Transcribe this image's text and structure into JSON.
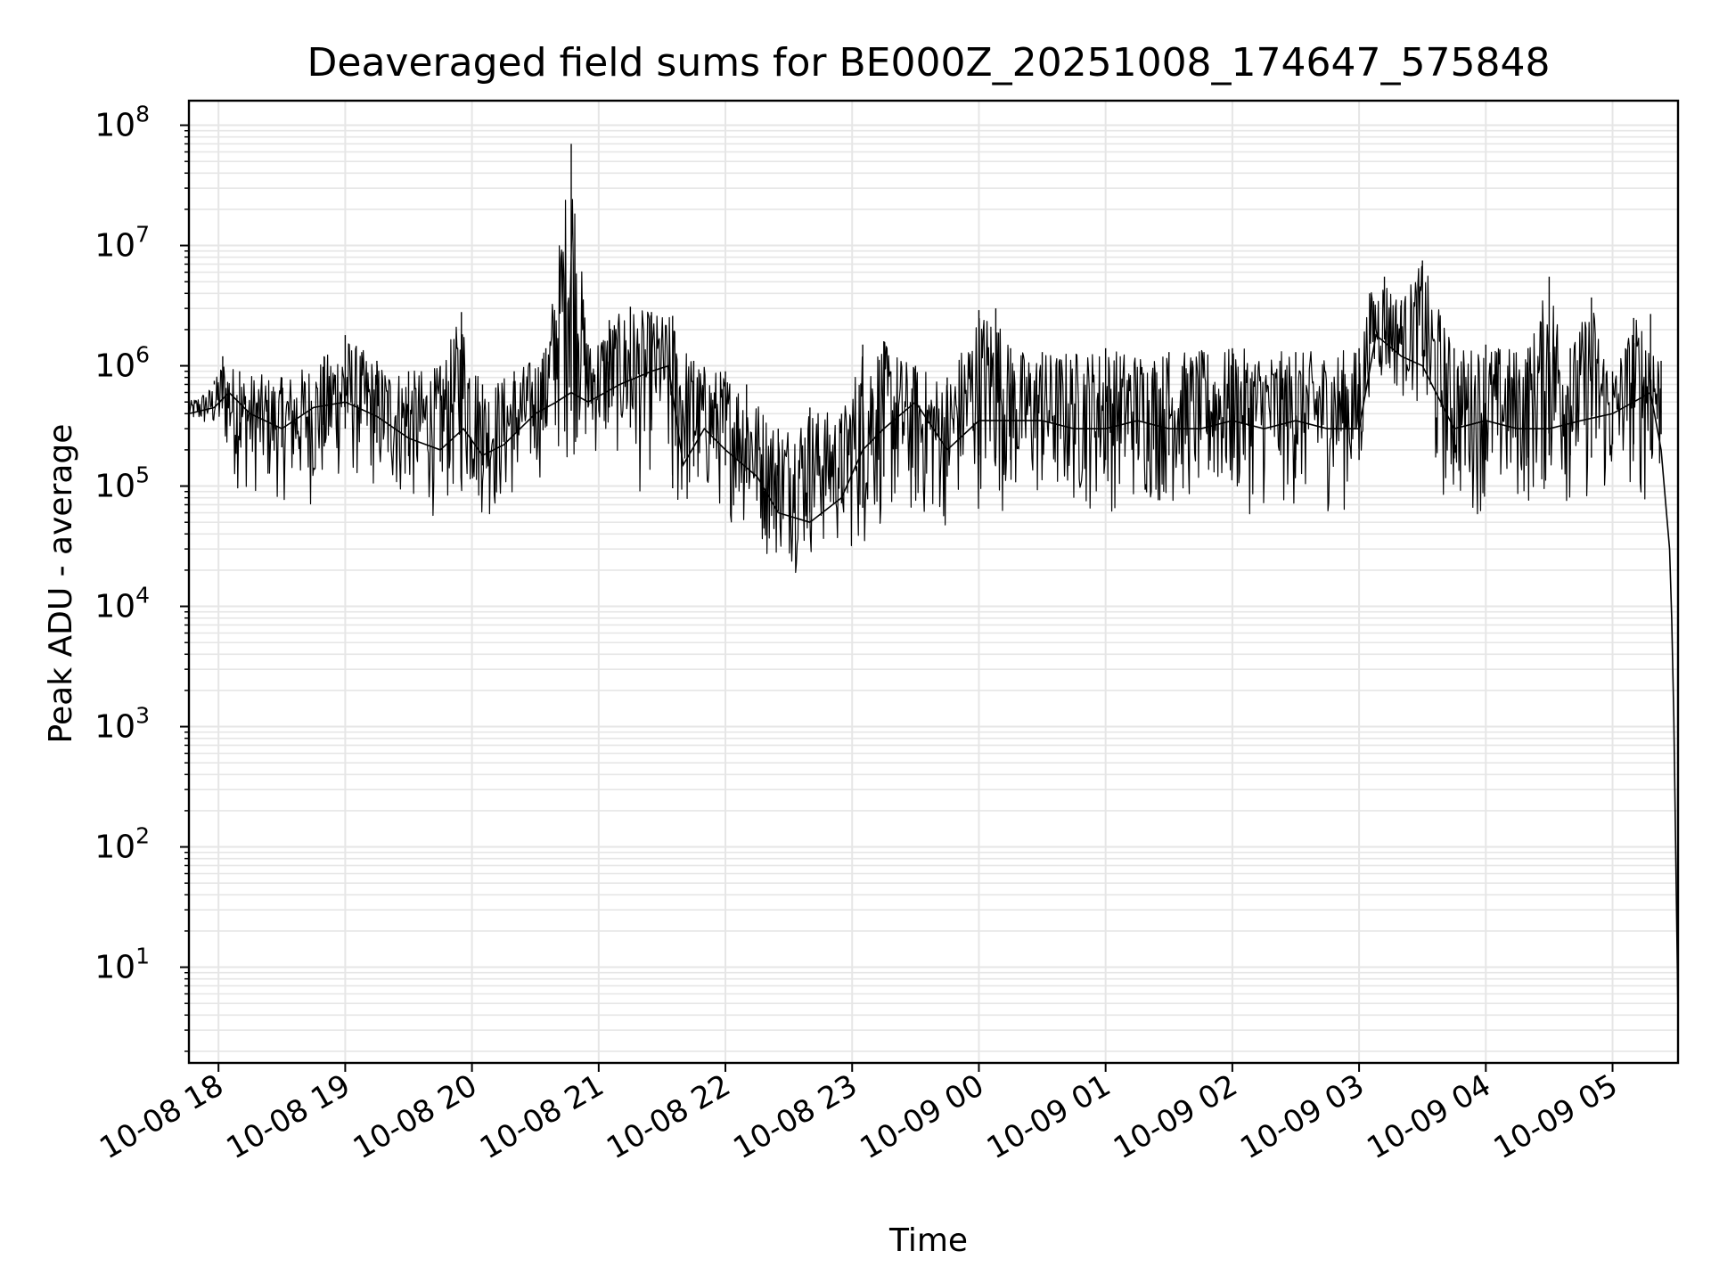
{
  "chart_data": {
    "type": "line",
    "title": "Deaveraged field sums for BE000Z_20251008_174647_575848",
    "xlabel": "Time",
    "ylabel": "Peak ADU - average",
    "y_scale": "log",
    "ylim": [
      1.6,
      160000000
    ],
    "xlim": [
      "2025-10-08 17:46",
      "2025-10-09 05:31"
    ],
    "grid": true,
    "line_color": "#000000",
    "grid_color": "#e6e6e6",
    "x_ticks": [
      {
        "t": "2025-10-08 18:00",
        "label": "10-08 18"
      },
      {
        "t": "2025-10-08 19:00",
        "label": "10-08 19"
      },
      {
        "t": "2025-10-08 20:00",
        "label": "10-08 20"
      },
      {
        "t": "2025-10-08 21:00",
        "label": "10-08 21"
      },
      {
        "t": "2025-10-08 22:00",
        "label": "10-08 22"
      },
      {
        "t": "2025-10-08 23:00",
        "label": "10-08 23"
      },
      {
        "t": "2025-10-09 00:00",
        "label": "10-09 00"
      },
      {
        "t": "2025-10-09 01:00",
        "label": "10-09 01"
      },
      {
        "t": "2025-10-09 02:00",
        "label": "10-09 02"
      },
      {
        "t": "2025-10-09 03:00",
        "label": "10-09 03"
      },
      {
        "t": "2025-10-09 04:00",
        "label": "10-09 04"
      },
      {
        "t": "2025-10-09 05:00",
        "label": "10-09 05"
      }
    ],
    "y_ticks": [
      {
        "value": 10,
        "base": "10",
        "exp": "1"
      },
      {
        "value": 100,
        "base": "10",
        "exp": "2"
      },
      {
        "value": 1000,
        "base": "10",
        "exp": "3"
      },
      {
        "value": 10000,
        "base": "10",
        "exp": "4"
      },
      {
        "value": 100000,
        "base": "10",
        "exp": "5"
      },
      {
        "value": 1000000,
        "base": "10",
        "exp": "6"
      },
      {
        "value": 10000000,
        "base": "10",
        "exp": "7"
      },
      {
        "value": 100000000,
        "base": "10",
        "exp": "8"
      }
    ],
    "series": [
      {
        "x": [
          "2025-10-08 17:46",
          "2025-10-08 17:58",
          "2025-10-08 18:05",
          "2025-10-08 18:15",
          "2025-10-08 18:30",
          "2025-10-08 18:45",
          "2025-10-08 19:00",
          "2025-10-08 19:15",
          "2025-10-08 19:30",
          "2025-10-08 19:45",
          "2025-10-08 19:56",
          "2025-10-08 20:05",
          "2025-10-08 20:15",
          "2025-10-08 20:30",
          "2025-10-08 20:40",
          "2025-10-08 20:47",
          "2025-10-08 20:55",
          "2025-10-08 21:10",
          "2025-10-08 21:25",
          "2025-10-08 21:33",
          "2025-10-08 21:40",
          "2025-10-08 21:50",
          "2025-10-08 22:00",
          "2025-10-08 22:15",
          "2025-10-08 22:25",
          "2025-10-08 22:40",
          "2025-10-08 22:55",
          "2025-10-08 23:05",
          "2025-10-08 23:15",
          "2025-10-08 23:30",
          "2025-10-08 23:45",
          "2025-10-09 00:00",
          "2025-10-09 00:15",
          "2025-10-09 00:30",
          "2025-10-09 00:45",
          "2025-10-09 01:00",
          "2025-10-09 01:15",
          "2025-10-09 01:30",
          "2025-10-09 01:45",
          "2025-10-09 02:00",
          "2025-10-09 02:15",
          "2025-10-09 02:30",
          "2025-10-09 02:45",
          "2025-10-09 03:00",
          "2025-10-09 03:08",
          "2025-10-09 03:20",
          "2025-10-09 03:30",
          "2025-10-09 03:45",
          "2025-10-09 04:00",
          "2025-10-09 04:15",
          "2025-10-09 04:30",
          "2025-10-09 04:45",
          "2025-10-09 05:00",
          "2025-10-09 05:10",
          "2025-10-09 05:18",
          "2025-10-09 05:23",
          "2025-10-09 05:27",
          "2025-10-09 05:28",
          "2025-10-09 05:29",
          "2025-10-09 05:31"
        ],
        "y": [
          400000,
          450000,
          600000,
          400000,
          300000,
          450000,
          500000,
          380000,
          250000,
          200000,
          300000,
          180000,
          220000,
          400000,
          500000,
          600000,
          500000,
          700000,
          900000,
          1000000,
          150000,
          300000,
          200000,
          120000,
          60000,
          50000,
          80000,
          200000,
          300000,
          500000,
          200000,
          350000,
          350000,
          350000,
          300000,
          300000,
          350000,
          300000,
          300000,
          350000,
          300000,
          350000,
          300000,
          300000,
          1800000,
          1200000,
          1000000,
          300000,
          350000,
          300000,
          300000,
          350000,
          400000,
          500000,
          600000,
          200000,
          30000,
          8000,
          1200,
          4
        ]
      }
    ],
    "upper_envelope": [
      [
        "2025-10-08 17:46",
        500000
      ],
      [
        "2025-10-08 17:58",
        700000
      ],
      [
        "2025-10-08 18:02",
        1200000
      ],
      [
        "2025-10-08 18:10",
        900000
      ],
      [
        "2025-10-08 18:30",
        800000
      ],
      [
        "2025-10-08 18:50",
        1200000
      ],
      [
        "2025-10-08 19:00",
        1800000
      ],
      [
        "2025-10-08 19:15",
        1100000
      ],
      [
        "2025-10-08 19:30",
        900000
      ],
      [
        "2025-10-08 19:45",
        1000000
      ],
      [
        "2025-10-08 19:55",
        2800000
      ],
      [
        "2025-10-08 20:05",
        700000
      ],
      [
        "2025-10-08 20:20",
        900000
      ],
      [
        "2025-10-08 20:35",
        1400000
      ],
      [
        "2025-10-08 20:47",
        70000000
      ],
      [
        "2025-10-08 20:55",
        1500000
      ],
      [
        "2025-10-08 21:05",
        2400000
      ],
      [
        "2025-10-08 21:15",
        3100000
      ],
      [
        "2025-10-08 21:25",
        2800000
      ],
      [
        "2025-10-08 21:35",
        2600000
      ],
      [
        "2025-10-08 21:45",
        1100000
      ],
      [
        "2025-10-08 22:00",
        900000
      ],
      [
        "2025-10-08 22:10",
        700000
      ],
      [
        "2025-10-08 22:25",
        300000
      ],
      [
        "2025-10-08 22:40",
        450000
      ],
      [
        "2025-10-08 22:55",
        400000
      ],
      [
        "2025-10-08 23:05",
        1500000
      ],
      [
        "2025-10-08 23:15",
        1600000
      ],
      [
        "2025-10-08 23:30",
        1000000
      ],
      [
        "2025-10-08 23:45",
        800000
      ],
      [
        "2025-10-09 00:00",
        2900000
      ],
      [
        "2025-10-09 00:08",
        3000000
      ],
      [
        "2025-10-09 00:15",
        1400000
      ],
      [
        "2025-10-09 00:30",
        1300000
      ],
      [
        "2025-10-09 01:00",
        1400000
      ],
      [
        "2025-10-09 01:30",
        1300000
      ],
      [
        "2025-10-09 02:00",
        1400000
      ],
      [
        "2025-10-09 02:30",
        1300000
      ],
      [
        "2025-10-09 03:00",
        1400000
      ],
      [
        "2025-10-09 03:05",
        4000000
      ],
      [
        "2025-10-09 03:12",
        5500000
      ],
      [
        "2025-10-09 03:20",
        3500000
      ],
      [
        "2025-10-09 03:30",
        7500000
      ],
      [
        "2025-10-09 03:45",
        1400000
      ],
      [
        "2025-10-09 04:00",
        1500000
      ],
      [
        "2025-10-09 04:20",
        1400000
      ],
      [
        "2025-10-09 04:30",
        5500000
      ],
      [
        "2025-10-09 04:40",
        1400000
      ],
      [
        "2025-10-09 04:50",
        3700000
      ],
      [
        "2025-10-09 05:00",
        900000
      ],
      [
        "2025-10-09 05:10",
        2500000
      ],
      [
        "2025-10-09 05:18",
        2700000
      ],
      [
        "2025-10-09 05:23",
        1100000
      ]
    ],
    "lower_envelope": [
      [
        "2025-10-08 17:46",
        330000
      ],
      [
        "2025-10-08 17:58",
        250000
      ],
      [
        "2025-10-08 18:10",
        80000
      ],
      [
        "2025-10-08 18:30",
        70000
      ],
      [
        "2025-10-08 18:45",
        60000
      ],
      [
        "2025-10-08 19:00",
        100000
      ],
      [
        "2025-10-08 19:20",
        70000
      ],
      [
        "2025-10-08 19:40",
        50000
      ],
      [
        "2025-10-08 19:55",
        60000
      ],
      [
        "2025-10-08 20:10",
        45000
      ],
      [
        "2025-10-08 20:30",
        100000
      ],
      [
        "2025-10-08 20:50",
        150000
      ],
      [
        "2025-10-08 21:10",
        150000
      ],
      [
        "2025-10-08 21:20",
        70000
      ],
      [
        "2025-10-08 21:30",
        200000
      ],
      [
        "2025-10-08 21:35",
        32000
      ],
      [
        "2025-10-08 21:50",
        60000
      ],
      [
        "2025-10-08 22:05",
        45000
      ],
      [
        "2025-10-08 22:20",
        22000
      ],
      [
        "2025-10-08 22:35",
        18000
      ],
      [
        "2025-10-08 22:50",
        25000
      ],
      [
        "2025-10-08 23:05",
        22000
      ],
      [
        "2025-10-08 23:15",
        40000
      ],
      [
        "2025-10-08 23:30",
        40000
      ],
      [
        "2025-10-08 23:45",
        40000
      ],
      [
        "2025-10-09 00:00",
        60000
      ],
      [
        "2025-10-09 00:15",
        55000
      ],
      [
        "2025-10-09 00:30",
        55000
      ],
      [
        "2025-10-09 01:00",
        55000
      ],
      [
        "2025-10-09 01:30",
        60000
      ],
      [
        "2025-10-09 02:00",
        55000
      ],
      [
        "2025-10-09 02:30",
        55000
      ],
      [
        "2025-10-09 03:00",
        55000
      ],
      [
        "2025-10-09 03:05",
        600000
      ],
      [
        "2025-10-09 03:20",
        500000
      ],
      [
        "2025-10-09 03:30",
        400000
      ],
      [
        "2025-10-09 03:35",
        60000
      ],
      [
        "2025-10-09 03:50",
        55000
      ],
      [
        "2025-10-09 04:10",
        55000
      ],
      [
        "2025-10-09 04:30",
        60000
      ],
      [
        "2025-10-09 04:45",
        60000
      ],
      [
        "2025-10-09 04:55",
        55000
      ],
      [
        "2025-10-09 05:05",
        100000
      ],
      [
        "2025-10-09 05:15",
        55000
      ],
      [
        "2025-10-09 05:23",
        90000
      ]
    ]
  }
}
